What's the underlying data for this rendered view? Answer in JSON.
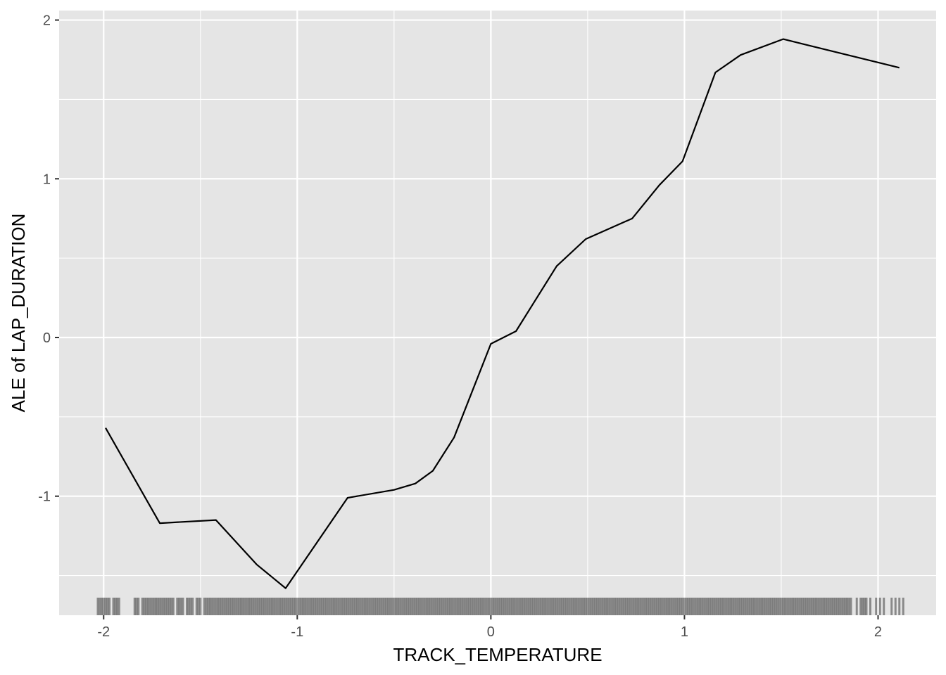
{
  "chart_data": {
    "type": "line",
    "title": "",
    "xlabel": "TRACK_TEMPERATURE",
    "ylabel": "ALE of LAP_DURATION",
    "xlim": [
      -2.23,
      2.3
    ],
    "ylim": [
      -1.75,
      2.06
    ],
    "x_ticks": [
      -2,
      -1,
      0,
      1,
      2
    ],
    "x_tick_labels": [
      "-2",
      "-1",
      "0",
      "1",
      "2"
    ],
    "y_ticks": [
      -1,
      0,
      1,
      2
    ],
    "y_tick_labels": [
      "-1",
      "0",
      "1",
      "2"
    ],
    "grid": true,
    "legend": "none",
    "colors": {
      "panel_background": "#e5e5e5",
      "grid": "#ffffff",
      "line": "#000000",
      "rug": "#000000"
    },
    "series": [
      {
        "x": [
          -1.99,
          -1.71,
          -1.42,
          -1.21,
          -1.06,
          -0.74,
          -0.5,
          -0.39,
          -0.3,
          -0.19,
          0.0,
          0.13,
          0.34,
          0.49,
          0.73,
          0.87,
          0.99,
          1.16,
          1.29,
          1.51,
          2.11
        ],
        "y": [
          -0.57,
          -1.17,
          -1.15,
          -1.43,
          -1.58,
          -1.01,
          -0.96,
          -0.92,
          -0.84,
          -0.63,
          -0.04,
          0.04,
          0.45,
          0.62,
          0.75,
          0.96,
          1.11,
          1.67,
          1.78,
          1.88,
          1.7
        ]
      }
    ],
    "rug_x": [
      -2.03,
      -2.02,
      -2.01,
      -2.0,
      -1.99,
      -1.98,
      -1.97,
      -1.95,
      -1.94,
      -1.93,
      -1.92,
      -1.84,
      -1.83,
      -1.82,
      -1.8,
      -1.79,
      -1.78,
      -1.77,
      -1.76,
      -1.75,
      -1.74,
      -1.73,
      -1.72,
      -1.71,
      -1.7,
      -1.69,
      -1.68,
      -1.67,
      -1.66,
      -1.65,
      -1.64,
      -1.62,
      -1.61,
      -1.6,
      -1.59,
      -1.57,
      -1.56,
      -1.55,
      -1.54,
      -1.52,
      -1.51,
      -1.5,
      -1.48,
      -1.47,
      -1.46,
      -1.45,
      -1.44,
      -1.43,
      -1.42,
      -1.41,
      -1.4,
      -1.39,
      -1.38,
      -1.37,
      -1.36,
      -1.35,
      -1.34,
      -1.33,
      -1.32,
      -1.31,
      -1.3,
      -1.29,
      -1.28,
      -1.27,
      -1.26,
      -1.25,
      -1.24,
      -1.23,
      -1.22,
      -1.21,
      -1.2,
      -1.19,
      -1.18,
      -1.17,
      -1.16,
      -1.15,
      -1.14,
      -1.13,
      -1.12,
      -1.11,
      -1.1,
      -1.09,
      -1.08,
      -1.07,
      -1.06,
      -1.05,
      -1.04,
      -1.03,
      -1.02,
      -1.01,
      -1.0,
      -0.99,
      -0.98,
      -0.97,
      -0.96,
      -0.95,
      -0.94,
      -0.93,
      -0.92,
      -0.91,
      -0.9,
      -0.89,
      -0.88,
      -0.87,
      -0.86,
      -0.85,
      -0.84,
      -0.83,
      -0.82,
      -0.81,
      -0.8,
      -0.79,
      -0.78,
      -0.77,
      -0.76,
      -0.75,
      -0.74,
      -0.73,
      -0.72,
      -0.71,
      -0.7,
      -0.69,
      -0.68,
      -0.67,
      -0.66,
      -0.65,
      -0.64,
      -0.63,
      -0.62,
      -0.61,
      -0.6,
      -0.59,
      -0.58,
      -0.57,
      -0.56,
      -0.55,
      -0.54,
      -0.53,
      -0.52,
      -0.51,
      -0.5,
      -0.49,
      -0.48,
      -0.47,
      -0.46,
      -0.45,
      -0.44,
      -0.43,
      -0.42,
      -0.41,
      -0.4,
      -0.39,
      -0.38,
      -0.37,
      -0.36,
      -0.35,
      -0.34,
      -0.33,
      -0.32,
      -0.31,
      -0.3,
      -0.29,
      -0.28,
      -0.27,
      -0.26,
      -0.25,
      -0.24,
      -0.23,
      -0.22,
      -0.21,
      -0.2,
      -0.19,
      -0.18,
      -0.17,
      -0.16,
      -0.15,
      -0.14,
      -0.13,
      -0.12,
      -0.11,
      -0.1,
      -0.09,
      -0.08,
      -0.07,
      -0.06,
      -0.05,
      -0.04,
      -0.03,
      -0.02,
      -0.01,
      0.0,
      0.01,
      0.02,
      0.03,
      0.04,
      0.05,
      0.06,
      0.07,
      0.08,
      0.09,
      0.1,
      0.11,
      0.12,
      0.13,
      0.14,
      0.15,
      0.16,
      0.17,
      0.18,
      0.19,
      0.2,
      0.21,
      0.22,
      0.23,
      0.24,
      0.25,
      0.26,
      0.27,
      0.28,
      0.29,
      0.3,
      0.31,
      0.32,
      0.33,
      0.34,
      0.35,
      0.36,
      0.37,
      0.38,
      0.39,
      0.4,
      0.41,
      0.42,
      0.43,
      0.44,
      0.45,
      0.46,
      0.47,
      0.48,
      0.49,
      0.5,
      0.51,
      0.52,
      0.53,
      0.54,
      0.55,
      0.56,
      0.57,
      0.58,
      0.59,
      0.6,
      0.61,
      0.62,
      0.63,
      0.64,
      0.65,
      0.66,
      0.67,
      0.68,
      0.69,
      0.7,
      0.71,
      0.72,
      0.73,
      0.74,
      0.75,
      0.76,
      0.77,
      0.78,
      0.79,
      0.8,
      0.81,
      0.82,
      0.83,
      0.84,
      0.85,
      0.86,
      0.87,
      0.88,
      0.89,
      0.9,
      0.91,
      0.92,
      0.93,
      0.94,
      0.95,
      0.96,
      0.97,
      0.98,
      0.99,
      1.0,
      1.01,
      1.02,
      1.03,
      1.04,
      1.05,
      1.06,
      1.07,
      1.08,
      1.09,
      1.1,
      1.11,
      1.12,
      1.13,
      1.14,
      1.15,
      1.16,
      1.17,
      1.18,
      1.19,
      1.2,
      1.21,
      1.22,
      1.23,
      1.24,
      1.25,
      1.26,
      1.27,
      1.28,
      1.29,
      1.3,
      1.31,
      1.32,
      1.33,
      1.34,
      1.35,
      1.36,
      1.37,
      1.38,
      1.39,
      1.4,
      1.41,
      1.42,
      1.43,
      1.44,
      1.45,
      1.46,
      1.47,
      1.48,
      1.49,
      1.5,
      1.51,
      1.52,
      1.53,
      1.54,
      1.55,
      1.56,
      1.57,
      1.58,
      1.59,
      1.6,
      1.61,
      1.62,
      1.63,
      1.64,
      1.65,
      1.66,
      1.67,
      1.68,
      1.69,
      1.7,
      1.71,
      1.72,
      1.73,
      1.74,
      1.75,
      1.76,
      1.77,
      1.78,
      1.79,
      1.8,
      1.81,
      1.82,
      1.83,
      1.84,
      1.85,
      1.86,
      1.89,
      1.91,
      1.92,
      1.93,
      1.94,
      1.96,
      1.99,
      2.01,
      2.03,
      2.07,
      2.09,
      2.11,
      2.13
    ]
  }
}
